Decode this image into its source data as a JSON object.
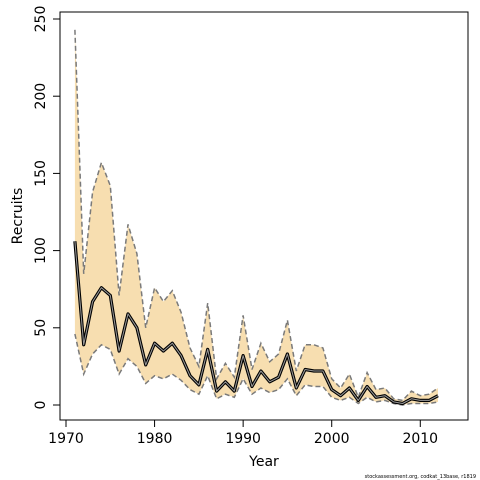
{
  "chart_data": {
    "type": "line",
    "title": "",
    "xlabel": "Year",
    "ylabel": "Recruits",
    "xlim": [
      1970,
      2012
    ],
    "ylim": [
      0,
      250
    ],
    "x_ticks": [
      1970,
      1980,
      1990,
      2000,
      2010
    ],
    "y_ticks": [
      0,
      50,
      100,
      150,
      200,
      250
    ],
    "grid": false,
    "legend": "none",
    "x": [
      1971,
      1972,
      1973,
      1974,
      1975,
      1976,
      1977,
      1978,
      1979,
      1980,
      1981,
      1982,
      1983,
      1984,
      1985,
      1986,
      1987,
      1988,
      1989,
      1990,
      1991,
      1992,
      1993,
      1994,
      1995,
      1996,
      1997,
      1998,
      1999,
      2000,
      2001,
      2002,
      2003,
      2004,
      2005,
      2006,
      2007,
      2008,
      2009,
      2010,
      2011,
      2012
    ],
    "series": [
      {
        "values": [
          106,
          39,
          67,
          76,
          71,
          35,
          59,
          50,
          26,
          40,
          35,
          40,
          32,
          19,
          13,
          36,
          9,
          15,
          9,
          32,
          12,
          22,
          15,
          18,
          33,
          11,
          23,
          22,
          22,
          10,
          6,
          11,
          3,
          12,
          5,
          6,
          2,
          1,
          4,
          3,
          3,
          6
        ]
      }
    ],
    "band_lower": [
      46,
      20,
      33,
      39,
      36,
      20,
      30,
      25,
      14,
      19,
      17,
      20,
      16,
      10,
      7,
      19,
      4,
      7,
      5,
      17,
      7,
      11,
      8,
      10,
      17,
      6,
      13,
      12,
      12,
      5,
      3,
      5,
      1,
      5,
      2,
      3,
      1,
      0,
      1,
      1,
      1,
      2
    ],
    "band_upper": [
      243,
      85,
      138,
      157,
      142,
      71,
      117,
      98,
      50,
      76,
      67,
      74,
      60,
      37,
      25,
      66,
      17,
      27,
      18,
      58,
      23,
      40,
      28,
      33,
      55,
      22,
      39,
      39,
      37,
      17,
      11,
      20,
      5,
      21,
      10,
      11,
      4,
      3,
      9,
      6,
      7,
      11
    ],
    "colors": {
      "band": "#F7DEB0",
      "line": "#000000",
      "dash": "#7a7a7a"
    },
    "footnote": "stockassessment.org, codkat_13base, r1819"
  }
}
